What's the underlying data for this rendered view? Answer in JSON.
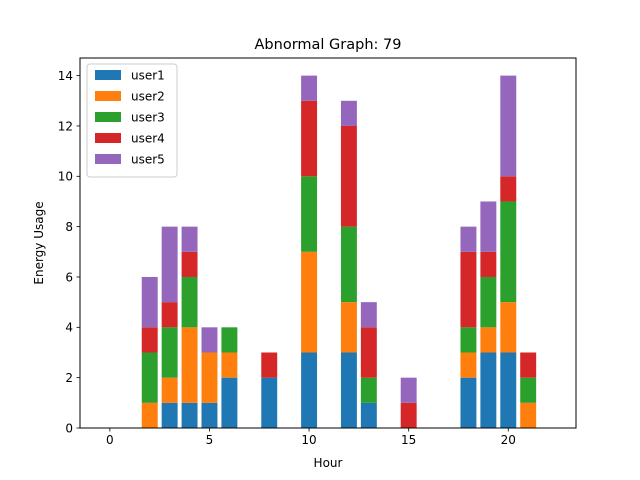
{
  "chart_data": {
    "type": "bar",
    "stacked": true,
    "title": "Abnormal Graph: 79",
    "xlabel": "Hour",
    "ylabel": "Energy Usage",
    "xlim": [
      -1.5,
      23.4
    ],
    "ylim": [
      0,
      14.7
    ],
    "xticks": [
      0,
      5,
      10,
      15,
      20
    ],
    "yticks": [
      0,
      2,
      4,
      6,
      8,
      10,
      12,
      14
    ],
    "legend_position": "top-left",
    "x": [
      0,
      1,
      2,
      3,
      4,
      5,
      6,
      7,
      8,
      9,
      10,
      11,
      12,
      13,
      14,
      15,
      16,
      17,
      18,
      19,
      20,
      21,
      22
    ],
    "series": [
      {
        "name": "user1",
        "color": "#1f77b4",
        "values": [
          0,
          0,
          0,
          1,
          1,
          1,
          2,
          0,
          2,
          0,
          3,
          0,
          3,
          1,
          0,
          0,
          0,
          0,
          2,
          3,
          3,
          0,
          0
        ]
      },
      {
        "name": "user2",
        "color": "#ff7f0e",
        "values": [
          0,
          0,
          1,
          1,
          3,
          2,
          1,
          0,
          0,
          0,
          4,
          0,
          2,
          0,
          0,
          0,
          0,
          0,
          1,
          1,
          2,
          1,
          0
        ]
      },
      {
        "name": "user3",
        "color": "#2ca02c",
        "values": [
          0,
          0,
          2,
          2,
          2,
          0,
          1,
          0,
          0,
          0,
          3,
          0,
          3,
          1,
          0,
          0,
          0,
          0,
          1,
          2,
          4,
          1,
          0
        ]
      },
      {
        "name": "user4",
        "color": "#d62728",
        "values": [
          0,
          0,
          1,
          1,
          1,
          0,
          0,
          0,
          1,
          0,
          3,
          0,
          4,
          2,
          0,
          1,
          0,
          0,
          3,
          1,
          1,
          1,
          0
        ]
      },
      {
        "name": "user5",
        "color": "#9467bd",
        "values": [
          0,
          0,
          2,
          3,
          1,
          1,
          0,
          0,
          0,
          0,
          1,
          0,
          1,
          1,
          0,
          1,
          0,
          0,
          1,
          2,
          4,
          0,
          0
        ]
      }
    ]
  }
}
